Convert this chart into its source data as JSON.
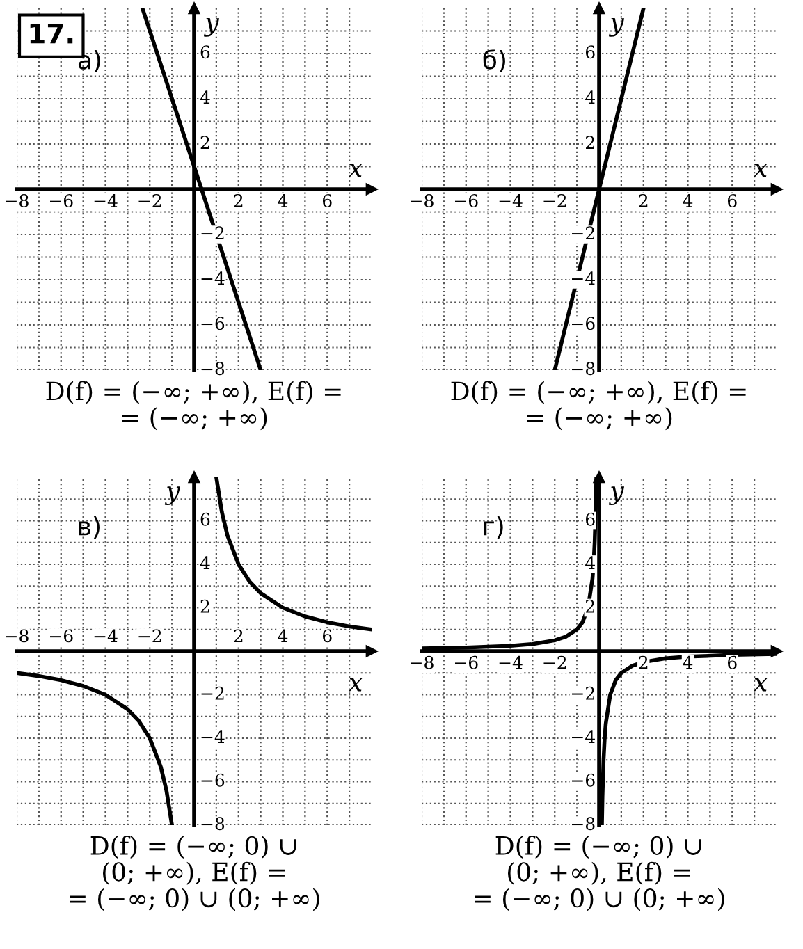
{
  "chart_data": [
    {
      "type": "line",
      "title": "а)",
      "xlabel": "x",
      "ylabel": "y",
      "xlim": [
        -8,
        8
      ],
      "ylim": [
        -8,
        8
      ],
      "xticks": [
        {
          "value": -8,
          "label": "−8"
        },
        {
          "value": -7,
          "label": null
        },
        {
          "value": -6,
          "label": "−6"
        },
        {
          "value": -5,
          "label": null
        },
        {
          "value": -4,
          "label": "−4"
        },
        {
          "value": -3,
          "label": null
        },
        {
          "value": -2,
          "label": "−2"
        },
        {
          "value": -1,
          "label": null
        },
        {
          "value": 1,
          "label": null
        },
        {
          "value": 2,
          "label": "2"
        },
        {
          "value": 3,
          "label": null
        },
        {
          "value": 4,
          "label": "4"
        },
        {
          "value": 5,
          "label": null
        },
        {
          "value": 6,
          "label": "6"
        },
        {
          "value": 7,
          "label": null
        }
      ],
      "yticks": [
        {
          "value": -8,
          "label": "−8"
        },
        {
          "value": -7,
          "label": null
        },
        {
          "value": -6,
          "label": "−6"
        },
        {
          "value": -5,
          "label": null
        },
        {
          "value": -4,
          "label": "−4"
        },
        {
          "value": -3,
          "label": null
        },
        {
          "value": -2,
          "label": "−2"
        },
        {
          "value": -1,
          "label": null
        },
        {
          "value": 1,
          "label": null
        },
        {
          "value": 2,
          "label": "2"
        },
        {
          "value": 3,
          "label": null
        },
        {
          "value": 4,
          "label": "4"
        },
        {
          "value": 5,
          "label": null
        },
        {
          "value": 6,
          "label": "6"
        },
        {
          "value": 7,
          "label": null
        }
      ],
      "grid": true,
      "line_style": "solid",
      "marker": "none",
      "series": [
        {
          "color": "#000000",
          "x": [
            -2.33,
            3
          ],
          "values": [
            8,
            -8
          ]
        }
      ],
      "annotations": [
        "17.",
        "D(f) = (−∞; +∞), E(f) =\n= (−∞; +∞)"
      ]
    },
    {
      "type": "line",
      "title": "б)",
      "xlabel": "x",
      "ylabel": "y",
      "xlim": [
        -8,
        8
      ],
      "ylim": [
        -8,
        8
      ],
      "xticks": [
        {
          "value": -8,
          "label": "−8"
        },
        {
          "value": -7,
          "label": null
        },
        {
          "value": -6,
          "label": "−6"
        },
        {
          "value": -5,
          "label": null
        },
        {
          "value": -4,
          "label": "−4"
        },
        {
          "value": -3,
          "label": null
        },
        {
          "value": -2,
          "label": "−2"
        },
        {
          "value": -1,
          "label": null
        },
        {
          "value": 1,
          "label": null
        },
        {
          "value": 2,
          "label": "2"
        },
        {
          "value": 3,
          "label": null
        },
        {
          "value": 4,
          "label": "4"
        },
        {
          "value": 5,
          "label": null
        },
        {
          "value": 6,
          "label": "6"
        },
        {
          "value": 7,
          "label": null
        }
      ],
      "yticks": [
        {
          "value": -8,
          "label": "−8"
        },
        {
          "value": -7,
          "label": null
        },
        {
          "value": -6,
          "label": "−6"
        },
        {
          "value": -5,
          "label": null
        },
        {
          "value": -4,
          "label": "−4"
        },
        {
          "value": -3,
          "label": null
        },
        {
          "value": -2,
          "label": "−2"
        },
        {
          "value": -1,
          "label": null
        },
        {
          "value": 1,
          "label": null
        },
        {
          "value": 2,
          "label": "2"
        },
        {
          "value": 3,
          "label": null
        },
        {
          "value": 4,
          "label": "4"
        },
        {
          "value": 5,
          "label": null
        },
        {
          "value": 6,
          "label": "6"
        },
        {
          "value": 7,
          "label": null
        }
      ],
      "grid": true,
      "line_style": "solid",
      "marker": "none",
      "series": [
        {
          "color": "#000000",
          "x": [
            -2,
            2
          ],
          "values": [
            -8,
            8
          ]
        }
      ],
      "annotations": [
        "D(f) = (−∞; +∞), E(f) =\n= (−∞; +∞)"
      ]
    },
    {
      "type": "line",
      "title": "в)",
      "xlabel": "x",
      "ylabel": "y",
      "xlim": [
        -8,
        8
      ],
      "ylim": [
        -8,
        8
      ],
      "xticks": [
        {
          "value": -8,
          "label": "−8"
        },
        {
          "value": -7,
          "label": null
        },
        {
          "value": -6,
          "label": "−6"
        },
        {
          "value": -5,
          "label": null
        },
        {
          "value": -4,
          "label": "−4"
        },
        {
          "value": -3,
          "label": null
        },
        {
          "value": -2,
          "label": "−2"
        },
        {
          "value": -1,
          "label": null
        },
        {
          "value": 1,
          "label": null
        },
        {
          "value": 2,
          "label": "2"
        },
        {
          "value": 3,
          "label": null
        },
        {
          "value": 4,
          "label": "4"
        },
        {
          "value": 5,
          "label": null
        },
        {
          "value": 6,
          "label": "6"
        },
        {
          "value": 7,
          "label": null
        }
      ],
      "yticks": [
        {
          "value": -8,
          "label": "−8"
        },
        {
          "value": -7,
          "label": null
        },
        {
          "value": -6,
          "label": "−6"
        },
        {
          "value": -5,
          "label": null
        },
        {
          "value": -4,
          "label": "−4"
        },
        {
          "value": -3,
          "label": null
        },
        {
          "value": -2,
          "label": "−2"
        },
        {
          "value": -1,
          "label": null
        },
        {
          "value": 1,
          "label": null
        },
        {
          "value": 2,
          "label": "2"
        },
        {
          "value": 3,
          "label": null
        },
        {
          "value": 4,
          "label": "4"
        },
        {
          "value": 5,
          "label": null
        },
        {
          "value": 6,
          "label": "6"
        },
        {
          "value": 7,
          "label": null
        }
      ],
      "grid": true,
      "line_style": "solid",
      "marker": "none",
      "series": [
        {
          "color": "#000000",
          "x": [
            -8,
            -7,
            -6,
            -5,
            -4,
            -3,
            -2.5,
            -2,
            -1.5,
            -1.25,
            -1,
            0,
            1,
            1.25,
            1.5,
            2,
            2.5,
            3,
            4,
            5,
            6,
            7,
            8
          ],
          "values": [
            -1,
            -1.14,
            -1.33,
            -1.6,
            -2,
            -2.67,
            -3.2,
            -4,
            -5.33,
            -6.4,
            -8,
            null,
            8,
            6.4,
            5.33,
            4,
            3.2,
            2.67,
            2,
            1.6,
            1.33,
            1.14,
            1
          ]
        }
      ],
      "annotations": [
        "D(f) = (−∞; 0) ∪\n(0; +∞), E(f) =\n= (−∞; 0) ∪ (0; +∞)"
      ]
    },
    {
      "type": "line",
      "title": "г)",
      "xlabel": "x",
      "ylabel": "y",
      "xlim": [
        -8,
        8
      ],
      "ylim": [
        -8,
        8
      ],
      "xticks": [
        {
          "value": -8,
          "label": "−8"
        },
        {
          "value": -7,
          "label": null
        },
        {
          "value": -6,
          "label": "−6"
        },
        {
          "value": -5,
          "label": null
        },
        {
          "value": -4,
          "label": "−4"
        },
        {
          "value": -3,
          "label": null
        },
        {
          "value": -2,
          "label": "−2"
        },
        {
          "value": -1,
          "label": null
        },
        {
          "value": 1,
          "label": null
        },
        {
          "value": 2,
          "label": "2"
        },
        {
          "value": 3,
          "label": null
        },
        {
          "value": 4,
          "label": "4"
        },
        {
          "value": 5,
          "label": null
        },
        {
          "value": 6,
          "label": "6"
        },
        {
          "value": 7,
          "label": null
        }
      ],
      "yticks": [
        {
          "value": -8,
          "label": "−8"
        },
        {
          "value": -7,
          "label": null
        },
        {
          "value": -6,
          "label": "−6"
        },
        {
          "value": -5,
          "label": null
        },
        {
          "value": -4,
          "label": "−4"
        },
        {
          "value": -3,
          "label": null
        },
        {
          "value": -2,
          "label": "−2"
        },
        {
          "value": -1,
          "label": null
        },
        {
          "value": 1,
          "label": null
        },
        {
          "value": 2,
          "label": "2"
        },
        {
          "value": 3,
          "label": null
        },
        {
          "value": 4,
          "label": "4"
        },
        {
          "value": 5,
          "label": null
        },
        {
          "value": 6,
          "label": "6"
        },
        {
          "value": 7,
          "label": null
        }
      ],
      "grid": true,
      "line_style": "solid",
      "marker": "none",
      "series": [
        {
          "color": "#000000",
          "x": [
            -8,
            -6,
            -4,
            -3,
            -2,
            -1.5,
            -1,
            -0.75,
            -0.5,
            -0.3,
            -0.25,
            -0.2,
            -0.15,
            -0.125,
            0,
            0.125,
            0.15,
            0.2,
            0.25,
            0.3,
            0.5,
            0.75,
            1,
            1.5,
            2,
            3,
            4,
            6,
            8
          ],
          "values": [
            0.125,
            0.17,
            0.25,
            0.33,
            0.5,
            0.67,
            1,
            1.33,
            2,
            3.33,
            4,
            5,
            6.67,
            8,
            null,
            -8,
            -6.67,
            -5,
            -4,
            -3.33,
            -2,
            -1.33,
            -1,
            -0.67,
            -0.5,
            -0.33,
            -0.25,
            -0.17,
            -0.125
          ]
        }
      ],
      "annotations": [
        "D(f) = (−∞; 0) ∪\n(0; +∞), E(f) =\n= (−∞; 0) ∪ (0; +∞)"
      ]
    }
  ]
}
